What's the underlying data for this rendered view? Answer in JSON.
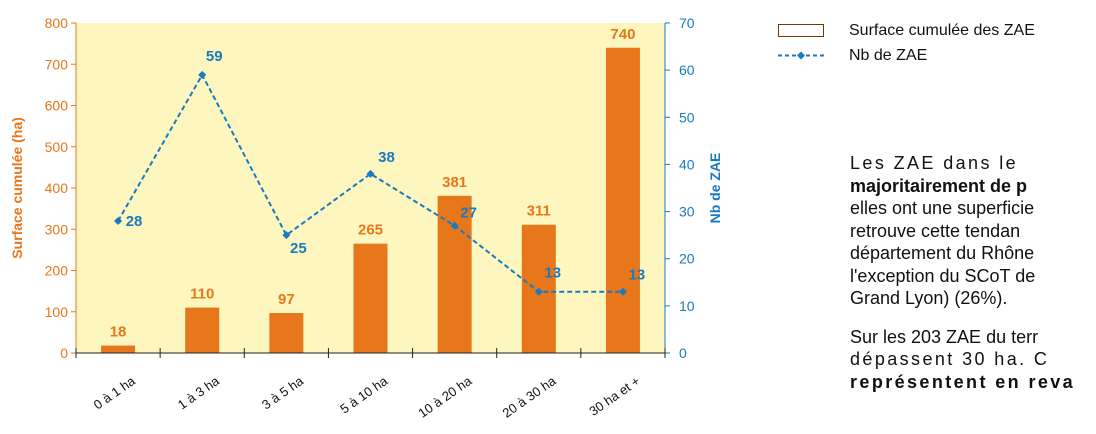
{
  "chart_data": {
    "type": "bar+line",
    "categories": [
      "0 à 1 ha",
      "1 à 3 ha",
      "3 à 5 ha",
      "5 à 10 ha",
      "10 à 20 ha",
      "20 à 30 ha",
      "30 ha et +"
    ],
    "series": [
      {
        "name": "Surface cumulée des ZAE",
        "type": "bar",
        "axis": "left",
        "values": [
          18,
          110,
          97,
          265,
          381,
          311,
          740
        ],
        "color": "#e8761a"
      },
      {
        "name": "Nb de ZAE",
        "type": "line",
        "axis": "right",
        "values": [
          28,
          59,
          25,
          38,
          27,
          13,
          13
        ],
        "color": "#1a7abf"
      }
    ],
    "ylabel_left": "Surface cumulée (ha)",
    "ylabel_right": "Nb de ZAE",
    "ylim_left": [
      0,
      800
    ],
    "ylim_right": [
      0,
      70
    ],
    "yticks_left": [
      0,
      100,
      200,
      300,
      400,
      500,
      600,
      700,
      800
    ],
    "yticks_right": [
      0,
      10,
      20,
      30,
      40,
      50,
      60,
      70
    ],
    "plot_background": "#fdf7bf",
    "left_axis_color": "#e8761a",
    "right_axis_color": "#1a7abf",
    "legend_position": "top-right"
  },
  "text": {
    "p1": {
      "l1": "Les ZAE dans le",
      "l2": "majoritairement de p",
      "l3": "elles ont une superficie",
      "l4": "retrouve cette tendan",
      "l5": "département du Rhône",
      "l6": "l'exception du SCoT de",
      "l7": "Grand Lyon) (26%)."
    },
    "p2": {
      "l1": "Sur les 203 ZAE du terr",
      "l2": "dépassent 30 ha. C",
      "l3": "représentent en reva"
    }
  }
}
